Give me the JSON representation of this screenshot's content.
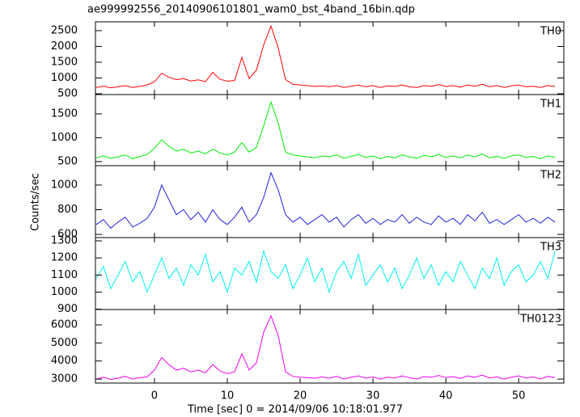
{
  "chart_data": {
    "type": "line",
    "title": "ae999992556_20140906101801_wam0_bst_4band_16bin.qdp",
    "xlabel": "Time [sec] 0 = 2014/09/06 10:18:01.977",
    "ylabel": "Counts/sec",
    "xlim": [
      -8.1,
      56.2
    ],
    "xticks": [
      0,
      10,
      20,
      30,
      40,
      50
    ],
    "x": [
      -8,
      -7,
      -6,
      -5,
      -4,
      -3,
      -2,
      -1,
      0,
      1,
      2,
      3,
      4,
      5,
      6,
      7,
      8,
      9,
      10,
      11,
      12,
      13,
      14,
      15,
      16,
      17,
      18,
      19,
      20,
      21,
      22,
      23,
      24,
      25,
      26,
      27,
      28,
      29,
      30,
      31,
      32,
      33,
      34,
      35,
      36,
      37,
      38,
      39,
      40,
      41,
      42,
      43,
      44,
      45,
      46,
      47,
      48,
      49,
      50,
      51,
      52,
      53,
      54,
      55
    ],
    "panels": [
      {
        "name": "TH0",
        "color": "#ff0000",
        "ylim": [
          475,
          2780
        ],
        "yticks": [
          500,
          1000,
          1500,
          2000,
          2500
        ],
        "values": [
          700,
          740,
          690,
          720,
          760,
          700,
          730,
          780,
          880,
          1150,
          1020,
          950,
          980,
          900,
          940,
          880,
          1180,
          960,
          900,
          920,
          1650,
          980,
          1250,
          2050,
          2650,
          1950,
          950,
          800,
          780,
          760,
          730,
          750,
          720,
          760,
          700,
          740,
          780,
          720,
          760,
          700,
          750,
          730,
          780,
          720,
          700,
          760,
          740,
          790,
          730,
          760,
          710,
          780,
          740,
          800,
          720,
          760,
          700,
          750,
          780,
          720,
          740,
          700,
          760,
          730
        ]
      },
      {
        "name": "TH1",
        "color": "#00ee00",
        "ylim": [
          415,
          1905
        ],
        "yticks": [
          500,
          1000,
          1500
        ],
        "values": [
          580,
          620,
          570,
          600,
          640,
          560,
          610,
          650,
          780,
          960,
          820,
          720,
          760,
          680,
          720,
          660,
          760,
          680,
          640,
          700,
          900,
          700,
          800,
          1250,
          1750,
          1300,
          700,
          640,
          620,
          600,
          580,
          620,
          600,
          640,
          570,
          610,
          650,
          590,
          620,
          560,
          610,
          580,
          640,
          600,
          570,
          630,
          600,
          650,
          590,
          620,
          580,
          640,
          600,
          660,
          580,
          610,
          570,
          620,
          640,
          590,
          610,
          560,
          620,
          590
        ]
      },
      {
        "name": "TH2",
        "color": "#2222dd",
        "ylim": [
          574,
          1157
        ],
        "yticks": [
          600,
          800,
          1000
        ],
        "values": [
          680,
          720,
          650,
          700,
          740,
          660,
          690,
          730,
          820,
          1000,
          880,
          760,
          800,
          720,
          780,
          700,
          800,
          720,
          680,
          740,
          820,
          700,
          760,
          900,
          1100,
          960,
          760,
          700,
          740,
          680,
          720,
          760,
          700,
          740,
          660,
          720,
          760,
          690,
          730,
          680,
          720,
          700,
          760,
          690,
          740,
          700,
          680,
          750,
          700,
          730,
          680,
          760,
          710,
          780,
          690,
          720,
          680,
          720,
          760,
          700,
          730,
          690,
          740,
          700
        ]
      },
      {
        "name": "TH3",
        "color": "#00eeee",
        "ylim": [
          898,
          1319
        ],
        "yticks": [
          900,
          1000,
          1100,
          1200,
          1300
        ],
        "values": [
          1080,
          1150,
          1020,
          1100,
          1180,
          1060,
          1120,
          1000,
          1100,
          1200,
          1080,
          1140,
          1040,
          1160,
          1100,
          1220,
          1060,
          1120,
          1000,
          1140,
          1100,
          1180,
          1060,
          1240,
          1120,
          1080,
          1160,
          1020,
          1100,
          1200,
          1060,
          1140,
          1000,
          1120,
          1180,
          1080,
          1220,
          1040,
          1100,
          1160,
          1060,
          1140,
          1020,
          1100,
          1200,
          1080,
          1160,
          1040,
          1120,
          1060,
          1180,
          1100,
          1020,
          1140,
          1080,
          1200,
          1040,
          1120,
          1160,
          1060,
          1100,
          1180,
          1080,
          1240
        ]
      },
      {
        "name": "TH0123",
        "color": "#ee00ee",
        "ylim": [
          2780,
          6850
        ],
        "yticks": [
          3000,
          4000,
          5000,
          6000
        ],
        "values": [
          3000,
          3100,
          2980,
          3050,
          3150,
          3000,
          3080,
          3120,
          3500,
          4200,
          3800,
          3500,
          3600,
          3400,
          3500,
          3350,
          3800,
          3450,
          3300,
          3400,
          4400,
          3500,
          3900,
          5600,
          6500,
          5400,
          3400,
          3150,
          3100,
          3080,
          3050,
          3120,
          3050,
          3150,
          3000,
          3100,
          3180,
          3050,
          3120,
          3000,
          3100,
          3060,
          3180,
          3080,
          3000,
          3140,
          3100,
          3200,
          3080,
          3140,
          3040,
          3180,
          3100,
          3220,
          3060,
          3120,
          3000,
          3100,
          3180,
          3060,
          3120,
          3000,
          3150,
          3080
        ]
      }
    ]
  }
}
